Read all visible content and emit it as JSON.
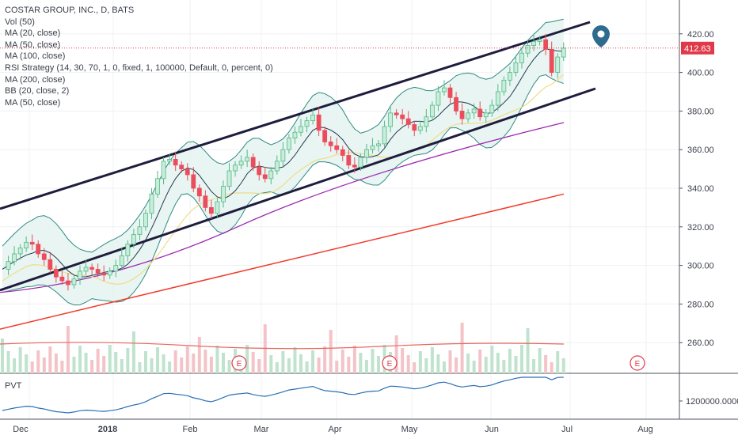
{
  "legend": {
    "title": "COSTAR GROUP, INC., D, BATS",
    "lines": [
      "Vol (50)",
      "MA (20, close)",
      "MA (50, close)",
      "MA (100, close)",
      "RSI Strategy (14, 30, 70, 1, 0, fixed, 1, 100000, Default, 0, percent, 0)",
      "MA (200, close)",
      "BB (20, close, 2)",
      "MA (50, close)"
    ]
  },
  "pvt": {
    "label": "PVT",
    "tick": "1200000.0000"
  },
  "price_badge": "412.63",
  "earnings_marker": "E",
  "colors": {
    "up": "#53b987",
    "down": "#eb4d5c",
    "bb": "#2e8b82",
    "bb_fill": "#e6f4f1",
    "ma20": "#233a4f",
    "ma50": "#f0dc8a",
    "ma100": "#9c27b0",
    "ma200": "#f23a2b",
    "channel": "#1f1d3e",
    "pvt": "#2a6fb5",
    "price_badge": "#e0394a",
    "pin": "#2f6b8f"
  },
  "chart_data": {
    "type": "candlestick",
    "title": "COSTAR GROUP, INC., D, BATS",
    "y_ticks": [
      420,
      400,
      380,
      360,
      340,
      320,
      300,
      280,
      260
    ],
    "x_labels": [
      "Dec",
      "2018",
      "Feb",
      "Mar",
      "Apr",
      "May",
      "Jun",
      "Jul",
      "Aug"
    ],
    "last_price": 412.63,
    "close_series": [
      [
        0,
        298
      ],
      [
        2,
        302
      ],
      [
        4,
        306
      ],
      [
        6,
        309
      ],
      [
        8,
        312
      ],
      [
        10,
        311
      ],
      [
        12,
        306
      ],
      [
        14,
        303
      ],
      [
        16,
        298
      ],
      [
        18,
        294
      ],
      [
        20,
        292
      ],
      [
        22,
        290
      ],
      [
        24,
        293
      ],
      [
        26,
        297
      ],
      [
        28,
        299
      ],
      [
        30,
        298
      ],
      [
        32,
        296
      ],
      [
        34,
        295
      ],
      [
        36,
        297
      ],
      [
        38,
        300
      ],
      [
        40,
        305
      ],
      [
        42,
        311
      ],
      [
        44,
        316
      ],
      [
        46,
        320
      ],
      [
        48,
        327
      ],
      [
        50,
        337
      ],
      [
        52,
        345
      ],
      [
        54,
        354
      ],
      [
        56,
        355
      ],
      [
        58,
        352
      ],
      [
        60,
        350
      ],
      [
        62,
        347
      ],
      [
        64,
        340
      ],
      [
        66,
        336
      ],
      [
        68,
        330
      ],
      [
        70,
        327
      ],
      [
        72,
        333
      ],
      [
        74,
        341
      ],
      [
        76,
        349
      ],
      [
        78,
        352
      ],
      [
        80,
        354
      ],
      [
        82,
        356
      ],
      [
        84,
        351
      ],
      [
        86,
        347
      ],
      [
        88,
        345
      ],
      [
        90,
        349
      ],
      [
        92,
        354
      ],
      [
        94,
        360
      ],
      [
        96,
        366
      ],
      [
        98,
        369
      ],
      [
        100,
        372
      ],
      [
        102,
        375
      ],
      [
        104,
        378
      ],
      [
        106,
        370
      ],
      [
        108,
        364
      ],
      [
        110,
        362
      ],
      [
        112,
        360
      ],
      [
        114,
        357
      ],
      [
        116,
        352
      ],
      [
        118,
        351
      ],
      [
        120,
        356
      ],
      [
        122,
        360
      ],
      [
        124,
        362
      ],
      [
        126,
        363
      ],
      [
        128,
        372
      ],
      [
        130,
        379
      ],
      [
        132,
        378
      ],
      [
        134,
        376
      ],
      [
        136,
        373
      ],
      [
        138,
        370
      ],
      [
        140,
        372
      ],
      [
        142,
        377
      ],
      [
        144,
        383
      ],
      [
        146,
        390
      ],
      [
        148,
        392
      ],
      [
        150,
        387
      ],
      [
        152,
        380
      ],
      [
        154,
        376
      ],
      [
        156,
        379
      ],
      [
        158,
        381
      ],
      [
        160,
        377
      ],
      [
        162,
        379
      ],
      [
        164,
        383
      ],
      [
        166,
        390
      ],
      [
        168,
        396
      ],
      [
        170,
        400
      ],
      [
        172,
        405
      ],
      [
        174,
        410
      ],
      [
        176,
        414
      ],
      [
        178,
        416
      ],
      [
        180,
        417
      ],
      [
        182,
        412
      ],
      [
        184,
        400
      ],
      [
        186,
        408
      ],
      [
        188,
        412.6
      ]
    ],
    "pvt_y_tick": 1200000
  }
}
